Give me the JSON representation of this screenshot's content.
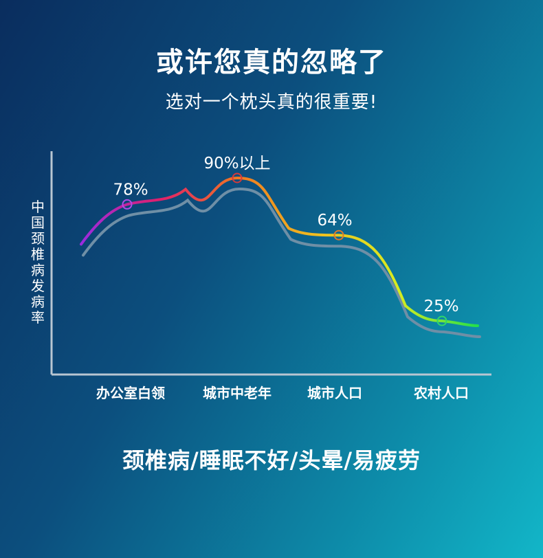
{
  "header": {
    "title": "或许您真的忽略了",
    "subtitle": "选对一个枕头真的很重要!"
  },
  "chart_data": {
    "type": "line",
    "ylabel": "中国颈椎病发病率",
    "xlabel": "",
    "categories": [
      "办公室白领",
      "城市中老年",
      "城市人口",
      "农村人口"
    ],
    "values": [
      78,
      90,
      64,
      25
    ],
    "labels": [
      "78%",
      "90%以上",
      "64%",
      "25%"
    ],
    "ylim": [
      0,
      100
    ],
    "grid": false,
    "marker_colors": [
      "#b04ce8",
      "#d63a3a",
      "#e07a2a",
      "#2fd86a"
    ],
    "gradient_colors": [
      "#9b2be0",
      "#e0206a",
      "#f07a20",
      "#f0c020",
      "#d8ec20",
      "#22e04a"
    ],
    "shadow_color": "#6f8fa6",
    "axis_color": "#b9c6d2"
  },
  "footer": {
    "tagline": "颈椎病/睡眠不好/头晕/易疲劳"
  }
}
